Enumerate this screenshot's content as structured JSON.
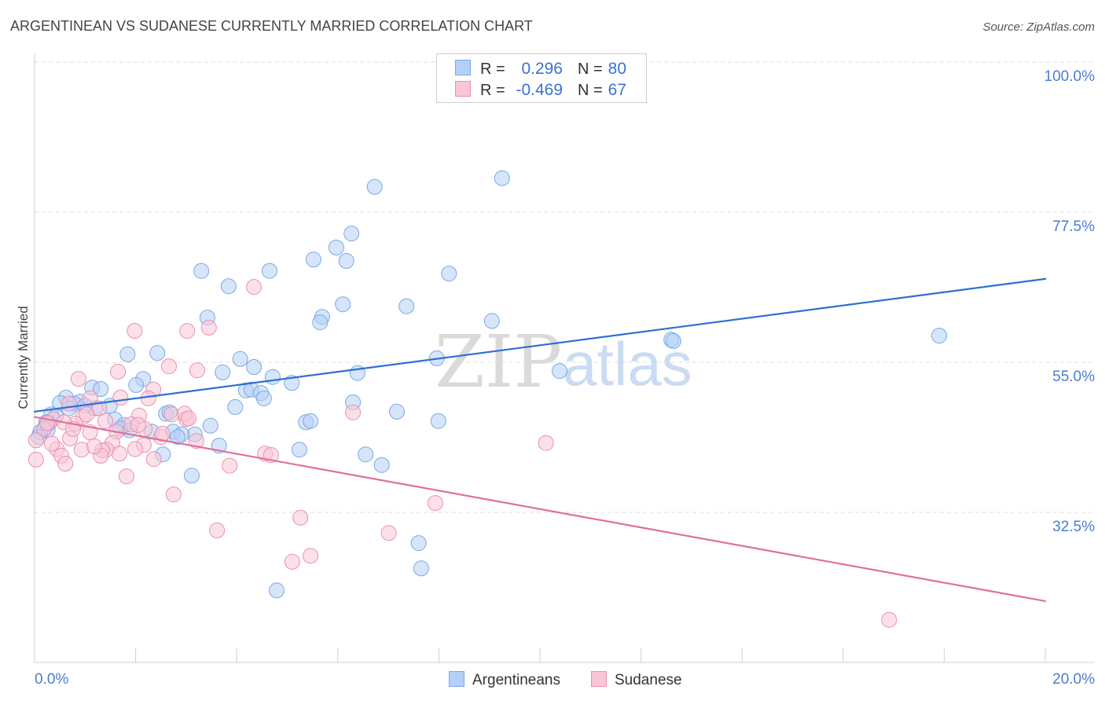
{
  "source": "Source: ZipAtlas.com",
  "watermark": {
    "zip": "ZIP",
    "atlas": "atlas"
  },
  "chart_data": {
    "type": "scatter",
    "title": "ARGENTINEAN VS SUDANESE CURRENTLY MARRIED CORRELATION CHART",
    "xlabel": "",
    "ylabel": "Currently Married",
    "xlim": [
      0,
      20
    ],
    "ylim": [
      10,
      101.3
    ],
    "grid": true,
    "legend_position": "top-center",
    "x_tick_values": [
      0,
      2,
      4,
      6,
      8,
      10,
      12,
      14,
      16,
      18,
      20
    ],
    "x_tick_labels": [
      {
        "value": 0,
        "label": "0.0%"
      },
      {
        "value": 20,
        "label": "20.0%"
      }
    ],
    "y_ticks": [
      {
        "value": 100,
        "label": "100.0%"
      },
      {
        "value": 77.5,
        "label": "77.5%"
      },
      {
        "value": 55,
        "label": "55.0%"
      },
      {
        "value": 32.5,
        "label": "32.5%"
      }
    ],
    "series": [
      {
        "name": "Argentineans",
        "r_label": "R =",
        "r": "0.296",
        "n_label": "N =",
        "n": "80",
        "color": "#7aa8e6",
        "fill": "#b4d0f6",
        "line_color": "#2f6fd4",
        "trend": [
          [
            0,
            47.6
          ],
          [
            20,
            67.5
          ]
        ],
        "points": [
          [
            6.73,
            81.3
          ],
          [
            9.25,
            82.6
          ],
          [
            6.27,
            74.3
          ],
          [
            5.97,
            72.2
          ],
          [
            5.52,
            70.4
          ],
          [
            6.17,
            70.2
          ],
          [
            3.3,
            68.7
          ],
          [
            4.65,
            68.7
          ],
          [
            8.2,
            68.3
          ],
          [
            3.84,
            66.4
          ],
          [
            6.1,
            63.7
          ],
          [
            7.36,
            63.4
          ],
          [
            3.42,
            61.7
          ],
          [
            5.69,
            61.8
          ],
          [
            5.65,
            61.0
          ],
          [
            9.05,
            61.2
          ],
          [
            12.6,
            58.4
          ],
          [
            12.64,
            58.2
          ],
          [
            17.9,
            59.0
          ],
          [
            1.84,
            56.2
          ],
          [
            2.43,
            56.4
          ],
          [
            7.96,
            55.6
          ],
          [
            4.07,
            55.5
          ],
          [
            4.34,
            54.3
          ],
          [
            3.72,
            53.5
          ],
          [
            6.39,
            53.4
          ],
          [
            10.39,
            53.7
          ],
          [
            4.71,
            52.8
          ],
          [
            2.15,
            52.5
          ],
          [
            5.09,
            51.9
          ],
          [
            2.01,
            51.6
          ],
          [
            1.14,
            51.2
          ],
          [
            1.31,
            51.0
          ],
          [
            4.18,
            50.8
          ],
          [
            4.29,
            50.9
          ],
          [
            4.48,
            50.4
          ],
          [
            4.54,
            49.6
          ],
          [
            0.62,
            49.7
          ],
          [
            0.9,
            49.1
          ],
          [
            0.78,
            48.8
          ],
          [
            0.5,
            48.9
          ],
          [
            1.49,
            48.5
          ],
          [
            1.2,
            48.1
          ],
          [
            6.3,
            49.0
          ],
          [
            3.97,
            48.3
          ],
          [
            7.17,
            47.6
          ],
          [
            2.6,
            47.3
          ],
          [
            2.67,
            47.5
          ],
          [
            0.33,
            47.2
          ],
          [
            0.42,
            46.9
          ],
          [
            0.23,
            46.0
          ],
          [
            1.59,
            46.4
          ],
          [
            5.37,
            46.0
          ],
          [
            5.46,
            46.2
          ],
          [
            7.99,
            46.2
          ],
          [
            3.48,
            45.5
          ],
          [
            1.77,
            45.6
          ],
          [
            1.7,
            45.1
          ],
          [
            0.19,
            45.1
          ],
          [
            0.26,
            44.9
          ],
          [
            0.11,
            44.5
          ],
          [
            2.74,
            44.6
          ],
          [
            2.32,
            44.6
          ],
          [
            3.17,
            44.2
          ],
          [
            2.91,
            44.2
          ],
          [
            2.83,
            43.8
          ],
          [
            3.65,
            42.5
          ],
          [
            5.24,
            41.9
          ],
          [
            6.55,
            41.2
          ],
          [
            2.54,
            41.2
          ],
          [
            6.87,
            39.6
          ],
          [
            3.11,
            38.0
          ],
          [
            7.6,
            27.9
          ],
          [
            7.65,
            24.1
          ],
          [
            4.79,
            20.8
          ],
          [
            0.08,
            43.8
          ],
          [
            0.68,
            48.1
          ],
          [
            1.0,
            48.5
          ],
          [
            0.28,
            45.9
          ],
          [
            1.88,
            44.8
          ]
        ]
      },
      {
        "name": "Sudanese",
        "r_label": "R =",
        "r": "-0.469",
        "n_label": "N =",
        "n": "67",
        "color": "#ea8fb0",
        "fill": "#f9c6d6",
        "line_color": "#e0709b",
        "trend": [
          [
            0,
            46.8
          ],
          [
            20,
            19.2
          ]
        ],
        "points": [
          [
            4.34,
            66.3
          ],
          [
            1.98,
            59.7
          ],
          [
            3.02,
            59.7
          ],
          [
            3.45,
            60.2
          ],
          [
            3.22,
            53.8
          ],
          [
            1.65,
            53.6
          ],
          [
            0.87,
            52.5
          ],
          [
            2.66,
            54.4
          ],
          [
            2.35,
            50.9
          ],
          [
            1.7,
            49.7
          ],
          [
            2.25,
            49.6
          ],
          [
            1.1,
            49.6
          ],
          [
            0.68,
            48.8
          ],
          [
            1.28,
            48.1
          ],
          [
            2.71,
            47.2
          ],
          [
            2.07,
            47.0
          ],
          [
            6.3,
            47.5
          ],
          [
            0.37,
            46.5
          ],
          [
            0.96,
            46.8
          ],
          [
            3.0,
            46.5
          ],
          [
            1.4,
            46.2
          ],
          [
            0.81,
            45.8
          ],
          [
            1.91,
            45.7
          ],
          [
            0.58,
            46.0
          ],
          [
            1.1,
            44.5
          ],
          [
            2.18,
            45.0
          ],
          [
            0.19,
            45.0
          ],
          [
            1.62,
            44.6
          ],
          [
            0.7,
            43.6
          ],
          [
            1.54,
            42.9
          ],
          [
            2.5,
            43.8
          ],
          [
            3.2,
            43.2
          ],
          [
            2.16,
            42.6
          ],
          [
            0.93,
            41.9
          ],
          [
            1.42,
            41.9
          ],
          [
            0.44,
            42.0
          ],
          [
            1.99,
            42.0
          ],
          [
            1.34,
            41.8
          ],
          [
            1.68,
            41.3
          ],
          [
            0.53,
            41.0
          ],
          [
            2.36,
            40.5
          ],
          [
            4.56,
            41.3
          ],
          [
            4.68,
            41.1
          ],
          [
            0.61,
            39.8
          ],
          [
            0.03,
            40.4
          ],
          [
            3.86,
            39.5
          ],
          [
            1.82,
            37.9
          ],
          [
            10.12,
            42.9
          ],
          [
            2.75,
            35.2
          ],
          [
            7.93,
            33.9
          ],
          [
            5.26,
            31.7
          ],
          [
            3.61,
            29.8
          ],
          [
            7.01,
            29.4
          ],
          [
            5.46,
            26.0
          ],
          [
            5.1,
            25.1
          ],
          [
            16.91,
            16.4
          ],
          [
            2.97,
            47.3
          ],
          [
            0.25,
            45.9
          ],
          [
            1.03,
            47.2
          ],
          [
            1.31,
            41.0
          ],
          [
            0.34,
            42.8
          ],
          [
            2.05,
            45.6
          ],
          [
            2.53,
            44.3
          ],
          [
            3.05,
            46.6
          ],
          [
            0.03,
            43.3
          ],
          [
            0.76,
            45.0
          ],
          [
            1.18,
            42.4
          ]
        ]
      }
    ]
  }
}
